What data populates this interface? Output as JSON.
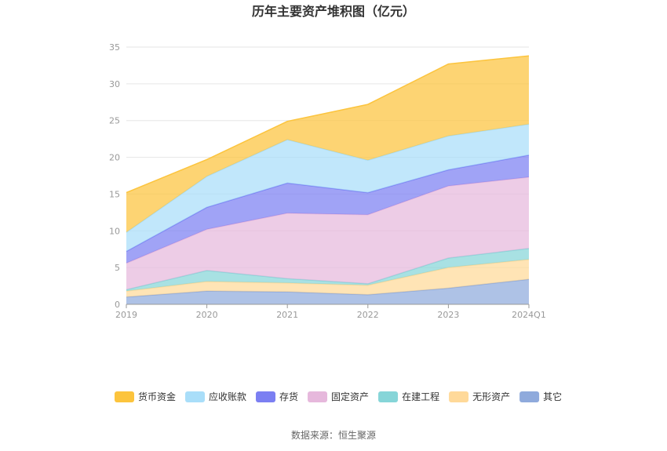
{
  "chart_data": {
    "type": "area",
    "stacked": true,
    "title": "历年主要资产堆积图（亿元）",
    "x": [
      "2019",
      "2020",
      "2021",
      "2022",
      "2023",
      "2024Q1"
    ],
    "ylim": [
      0,
      35
    ],
    "yticks": [
      "0",
      "5",
      "10",
      "15",
      "20",
      "25",
      "30",
      "35"
    ],
    "grid": true,
    "legend_position": "bottom",
    "series": [
      {
        "name": "其它",
        "color": "#8faadc",
        "values": [
          1.0,
          1.8,
          1.7,
          1.3,
          2.2,
          3.4
        ]
      },
      {
        "name": "无形资产",
        "color": "#ffd999",
        "values": [
          0.8,
          1.3,
          1.2,
          1.3,
          2.8,
          2.7
        ]
      },
      {
        "name": "在建工程",
        "color": "#86d5d8",
        "values": [
          0.2,
          1.5,
          0.6,
          0.2,
          1.3,
          1.5
        ]
      },
      {
        "name": "固定资产",
        "color": "#e6b8dc",
        "values": [
          3.6,
          5.6,
          8.9,
          9.4,
          9.8,
          9.7
        ]
      },
      {
        "name": "存货",
        "color": "#7b7ff2",
        "values": [
          1.6,
          3.0,
          4.1,
          3.0,
          2.2,
          3.0
        ]
      },
      {
        "name": "应收账款",
        "color": "#a9def9",
        "values": [
          2.6,
          4.2,
          5.9,
          4.4,
          4.6,
          4.2
        ]
      },
      {
        "name": "货币资金",
        "color": "#fcc43d",
        "values": [
          5.4,
          2.3,
          2.5,
          7.6,
          9.8,
          9.3
        ]
      }
    ],
    "legend_order": [
      "货币资金",
      "应收账款",
      "存货",
      "固定资产",
      "在建工程",
      "无形资产",
      "其它"
    ]
  },
  "footer": {
    "source": "数据来源：恒生聚源"
  }
}
